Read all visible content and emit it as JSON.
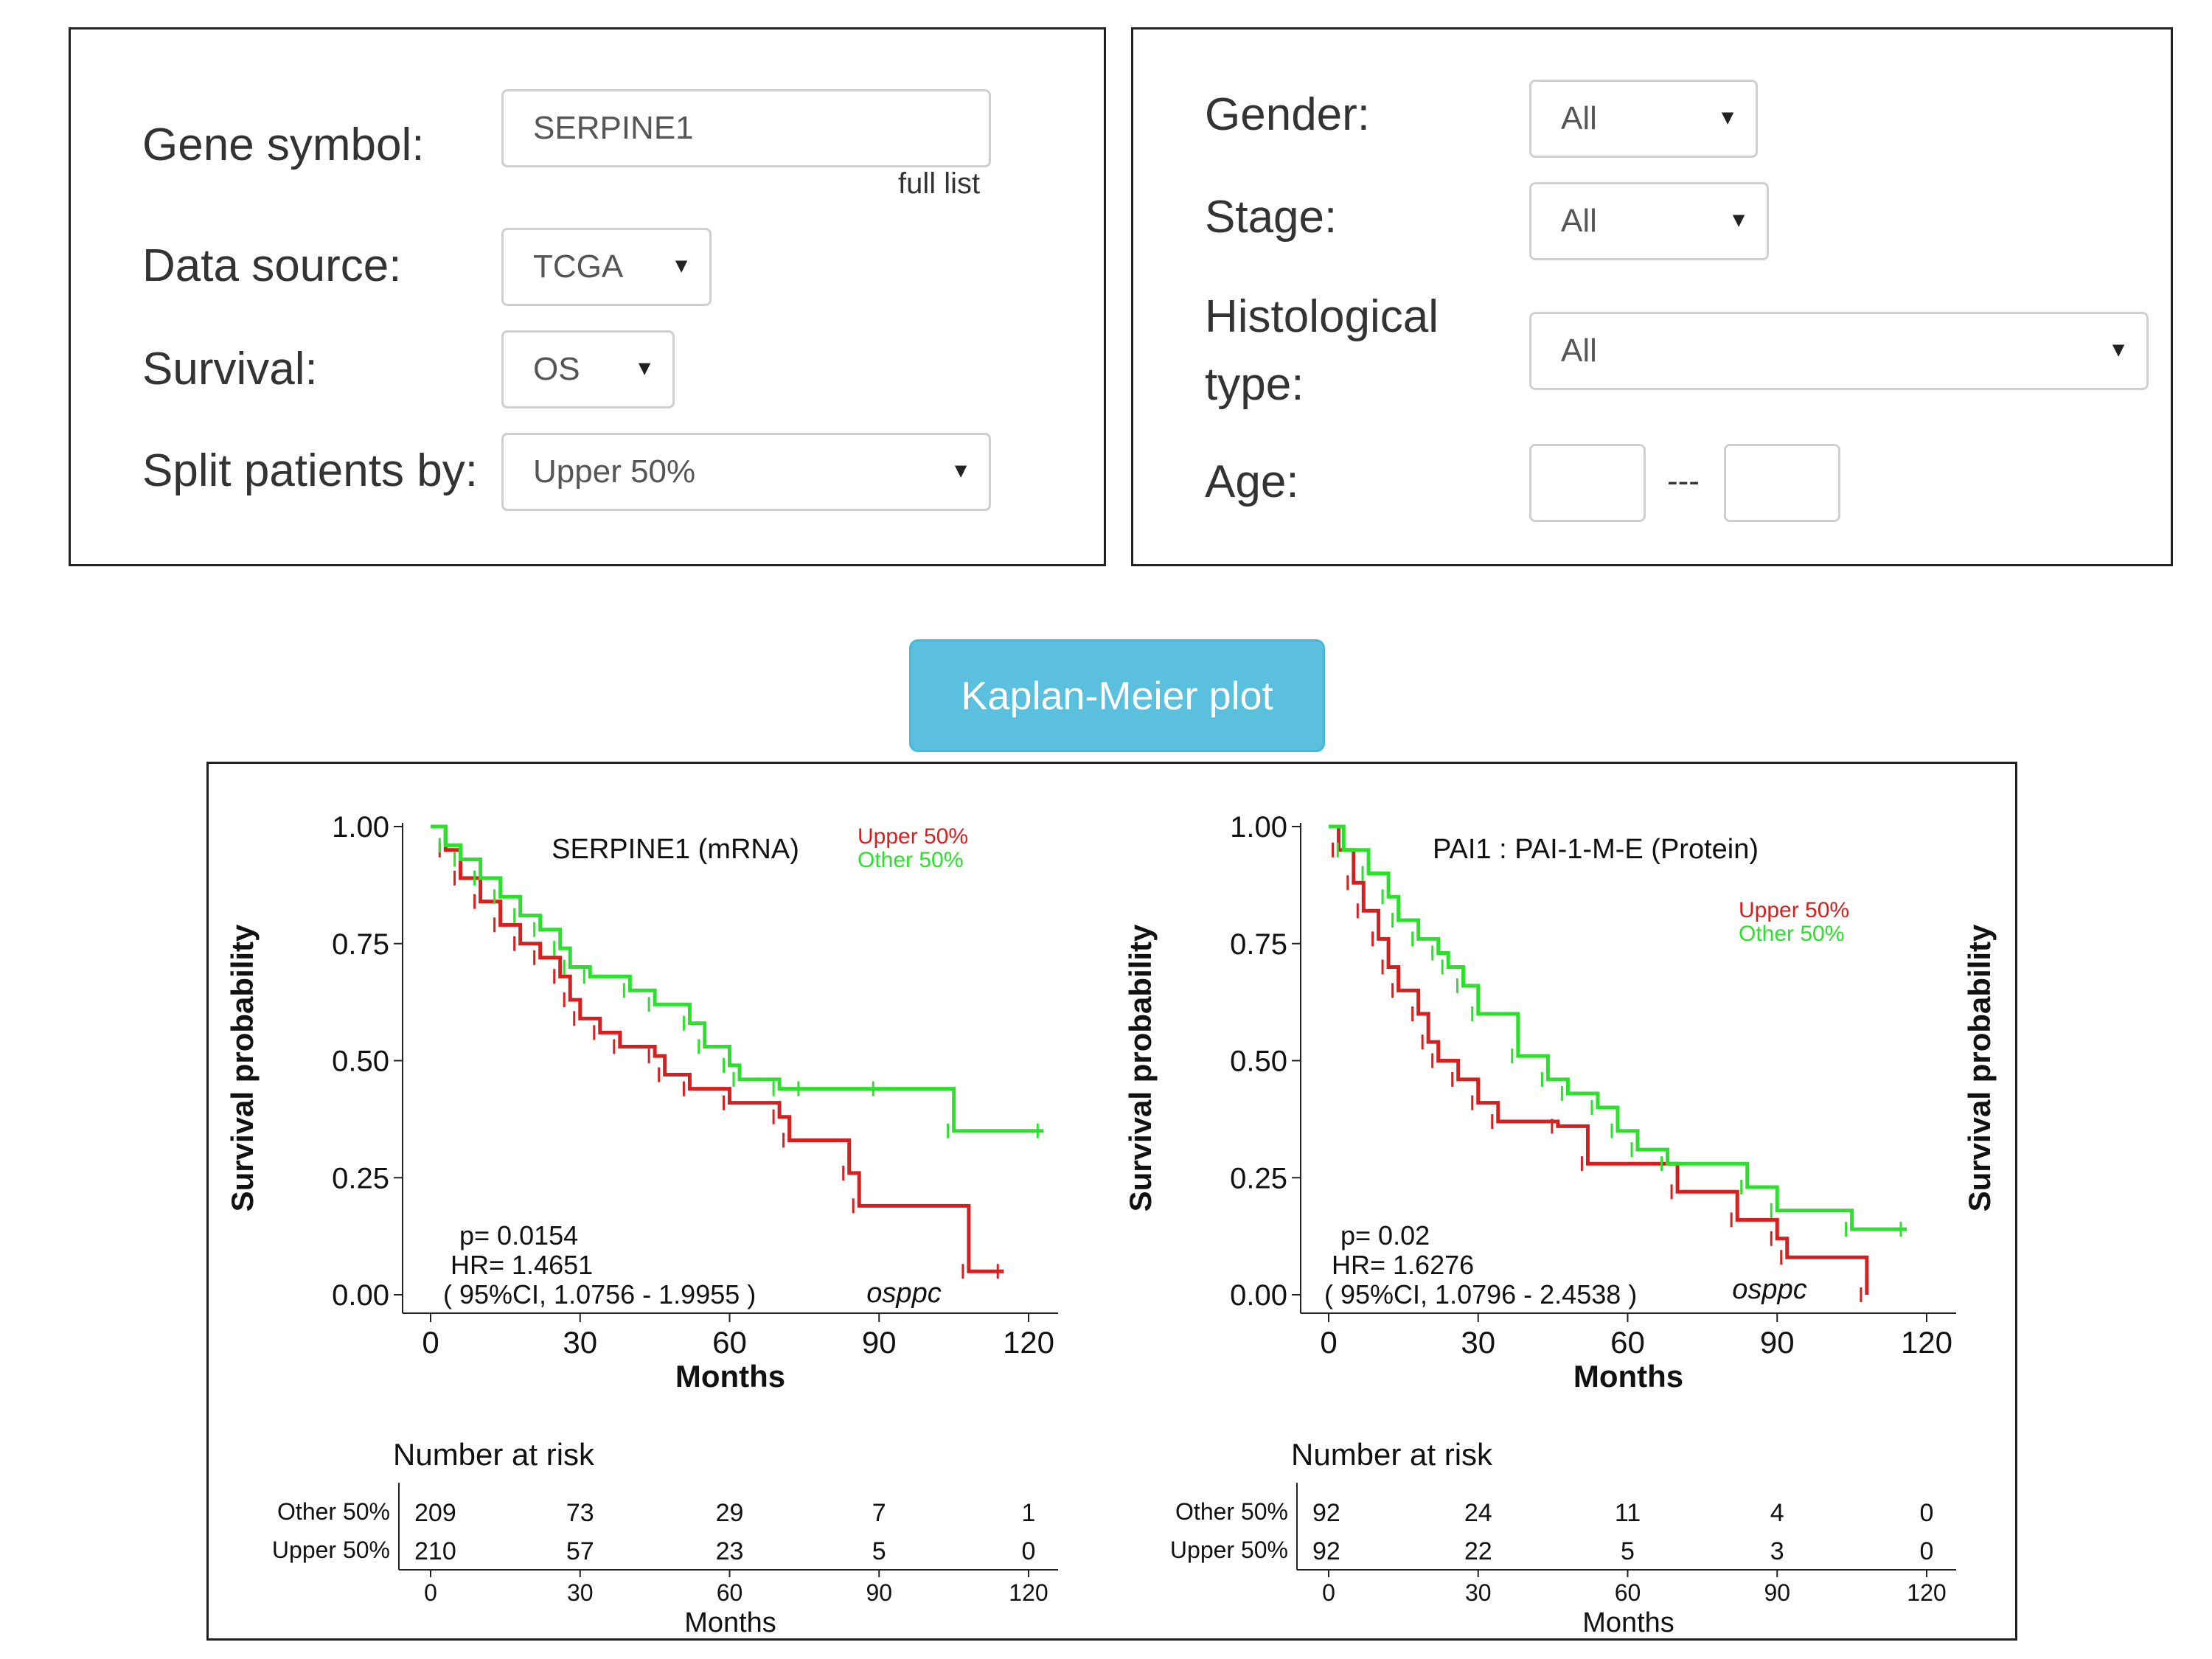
{
  "left_panel": {
    "gene_label": "Gene symbol:",
    "gene_value": "SERPINE1",
    "full_list_link": "full list",
    "source_label": "Data source:",
    "source_value": "TCGA",
    "survival_label": "Survival:",
    "survival_value": "OS",
    "split_label": "Split patients by:",
    "split_value": "Upper 50%"
  },
  "right_panel": {
    "gender_label": "Gender:",
    "gender_value": "All",
    "stage_label": "Stage:",
    "stage_value": "All",
    "hist_label_1": "Histological",
    "hist_label_2": "type:",
    "hist_value": "All",
    "age_label": "Age:",
    "age_sep": "---",
    "age_min": "",
    "age_max": ""
  },
  "km_button_label": "Kaplan-Meier plot",
  "icons": {
    "dropdown": "caret-down-icon"
  },
  "chart_data": [
    {
      "type": "line",
      "subtype": "kaplan-meier",
      "title": "SERPINE1 (mRNA)",
      "xlabel": "Months",
      "ylabel": "Survival probability",
      "xlim": [
        0,
        120
      ],
      "ylim": [
        0,
        1
      ],
      "x_ticks": [
        0,
        30,
        60,
        90,
        120
      ],
      "y_ticks": [
        "0.00",
        "0.25",
        "0.50",
        "0.75",
        "1.00"
      ],
      "legend": [
        "Upper 50%",
        "Other  50%"
      ],
      "legend_position": "top-right",
      "colors": {
        "upper": "#d62020",
        "other": "#2ee02e"
      },
      "stats": [
        "p= 0.0154",
        "HR= 1.4651",
        "( 95%CI, 1.0756 - 1.9955 )"
      ],
      "annotation": "osppc",
      "series": [
        {
          "name": "Upper 50%",
          "color": "#d62020",
          "x": [
            0,
            3,
            6,
            10,
            14,
            18,
            22,
            26,
            28,
            30,
            34,
            38,
            45,
            47,
            52,
            60,
            70,
            72,
            84,
            86,
            108,
            115
          ],
          "y": [
            1.0,
            0.95,
            0.89,
            0.84,
            0.79,
            0.75,
            0.72,
            0.68,
            0.63,
            0.59,
            0.56,
            0.53,
            0.51,
            0.47,
            0.44,
            0.41,
            0.38,
            0.33,
            0.26,
            0.19,
            0.05,
            0.05
          ]
        },
        {
          "name": "Other  50%",
          "color": "#2ee02e",
          "x": [
            0,
            3,
            6,
            10,
            14,
            18,
            22,
            26,
            28,
            32,
            40,
            45,
            52,
            55,
            60,
            62,
            70,
            75,
            90,
            105,
            123
          ],
          "y": [
            1.0,
            0.96,
            0.93,
            0.89,
            0.85,
            0.81,
            0.78,
            0.74,
            0.7,
            0.68,
            0.65,
            0.62,
            0.58,
            0.53,
            0.49,
            0.46,
            0.44,
            0.44,
            0.44,
            0.35,
            0.35
          ]
        }
      ],
      "risk_table": {
        "title": "Number at risk",
        "xlabel": "Months",
        "times": [
          0,
          30,
          60,
          90,
          120
        ],
        "rows": [
          {
            "label": "Other  50%",
            "values": [
              209,
              73,
              29,
              7,
              1
            ]
          },
          {
            "label": "Upper 50%",
            "values": [
              210,
              57,
              23,
              5,
              0
            ]
          }
        ]
      }
    },
    {
      "type": "line",
      "subtype": "kaplan-meier",
      "title": "PAI1 : PAI-1-M-E (Protein)",
      "xlabel": "Months",
      "ylabel": "Survival probability",
      "xlim": [
        0,
        120
      ],
      "ylim": [
        0,
        1
      ],
      "x_ticks": [
        0,
        30,
        60,
        90,
        120
      ],
      "y_ticks": [
        "0.00",
        "0.25",
        "0.50",
        "0.75",
        "1.00"
      ],
      "legend": [
        "Upper 50%",
        "Other  50%"
      ],
      "legend_position": "top-right",
      "colors": {
        "upper": "#d62020",
        "other": "#2ee02e"
      },
      "stats": [
        "p= 0.02",
        "HR= 1.6276",
        "( 95%CI, 1.0796 - 2.4538 )"
      ],
      "annotation": "osppc",
      "series": [
        {
          "name": "Upper 50%",
          "color": "#d62020",
          "x": [
            0,
            2,
            5,
            7,
            10,
            12,
            14,
            18,
            20,
            22,
            26,
            30,
            34,
            46,
            52,
            70,
            82,
            90,
            92,
            108
          ],
          "y": [
            1.0,
            0.95,
            0.88,
            0.82,
            0.76,
            0.7,
            0.65,
            0.6,
            0.54,
            0.5,
            0.46,
            0.41,
            0.37,
            0.36,
            0.28,
            0.22,
            0.16,
            0.12,
            0.08,
            0.0
          ]
        },
        {
          "name": "Other  50%",
          "color": "#2ee02e",
          "x": [
            0,
            3,
            8,
            12,
            14,
            18,
            22,
            24,
            27,
            30,
            38,
            44,
            48,
            54,
            58,
            62,
            68,
            84,
            90,
            105,
            116
          ],
          "y": [
            1.0,
            0.95,
            0.9,
            0.85,
            0.8,
            0.76,
            0.73,
            0.7,
            0.66,
            0.6,
            0.51,
            0.46,
            0.43,
            0.4,
            0.35,
            0.31,
            0.28,
            0.23,
            0.18,
            0.14,
            0.14
          ]
        }
      ],
      "risk_table": {
        "title": "Number at risk",
        "xlabel": "Months",
        "times": [
          0,
          30,
          60,
          90,
          120
        ],
        "rows": [
          {
            "label": "Other  50%",
            "values": [
              92,
              24,
              11,
              4,
              0
            ]
          },
          {
            "label": "Upper 50%",
            "values": [
              92,
              22,
              5,
              3,
              0
            ]
          }
        ]
      }
    }
  ]
}
